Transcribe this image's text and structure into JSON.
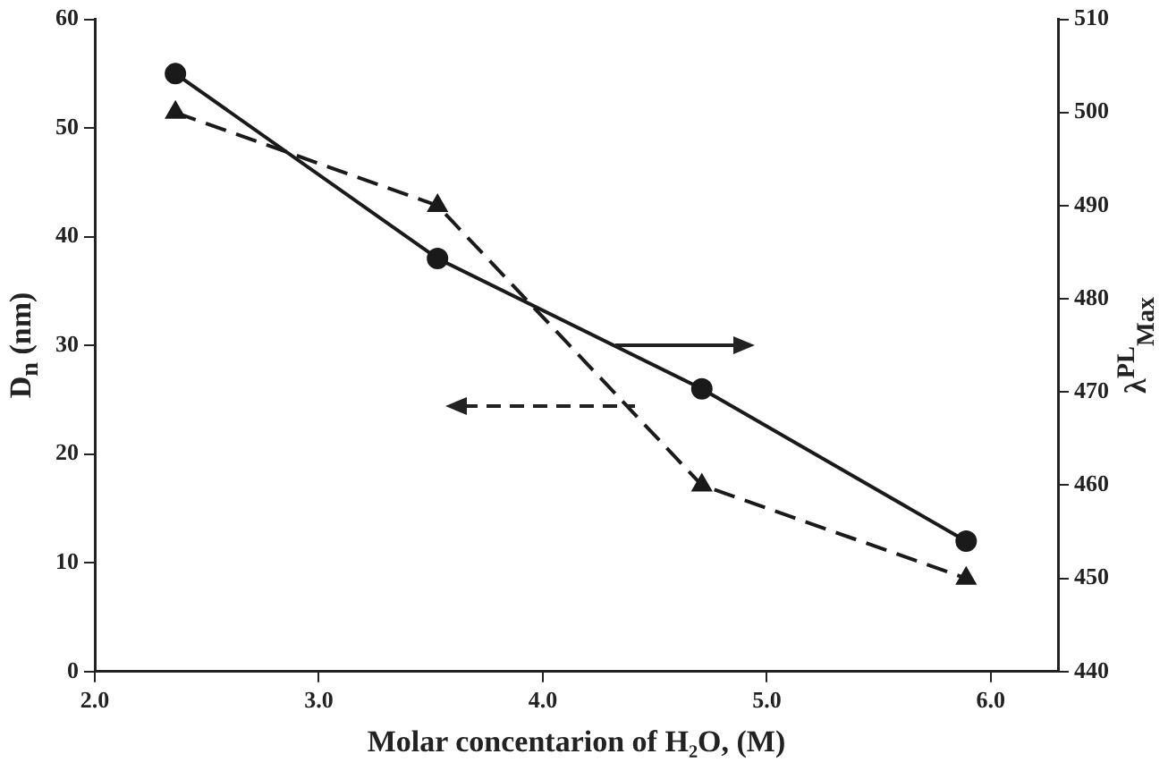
{
  "chart_data": {
    "type": "line",
    "xlabel": "Molar concentarion of H₂O, (M)",
    "ylabel": "D$_{n}$ (nm)",
    "y2label": "λ$^{PL}$$_{Max}$",
    "x": [
      2.36,
      3.53,
      4.71,
      5.89
    ],
    "xlim": [
      2.0,
      6.3
    ],
    "xticks": [
      {
        "value": 2,
        "label": "2.0"
      },
      {
        "value": 3,
        "label": "3.0"
      },
      {
        "value": 4,
        "label": "4.0"
      },
      {
        "value": 5,
        "label": "5.0"
      },
      {
        "value": 6,
        "label": "6.0"
      }
    ],
    "ylim": [
      0,
      60
    ],
    "yticks": [
      0,
      10,
      20,
      30,
      40,
      50,
      60
    ],
    "y2lim": [
      440,
      510
    ],
    "y2ticks": [
      440,
      450,
      460,
      470,
      480,
      490,
      500,
      510
    ],
    "grid": false,
    "legend": false,
    "series": [
      {
        "color": "#1a1a1a",
        "values": [
          55,
          38,
          26,
          12
        ],
        "marker": "circle",
        "line_style": "solid"
      },
      {
        "color": "#1a1a1a",
        "values": [
          500,
          490,
          460,
          450
        ],
        "axis": "y2",
        "marker": "triangle",
        "line_style": "dashed"
      }
    ]
  }
}
